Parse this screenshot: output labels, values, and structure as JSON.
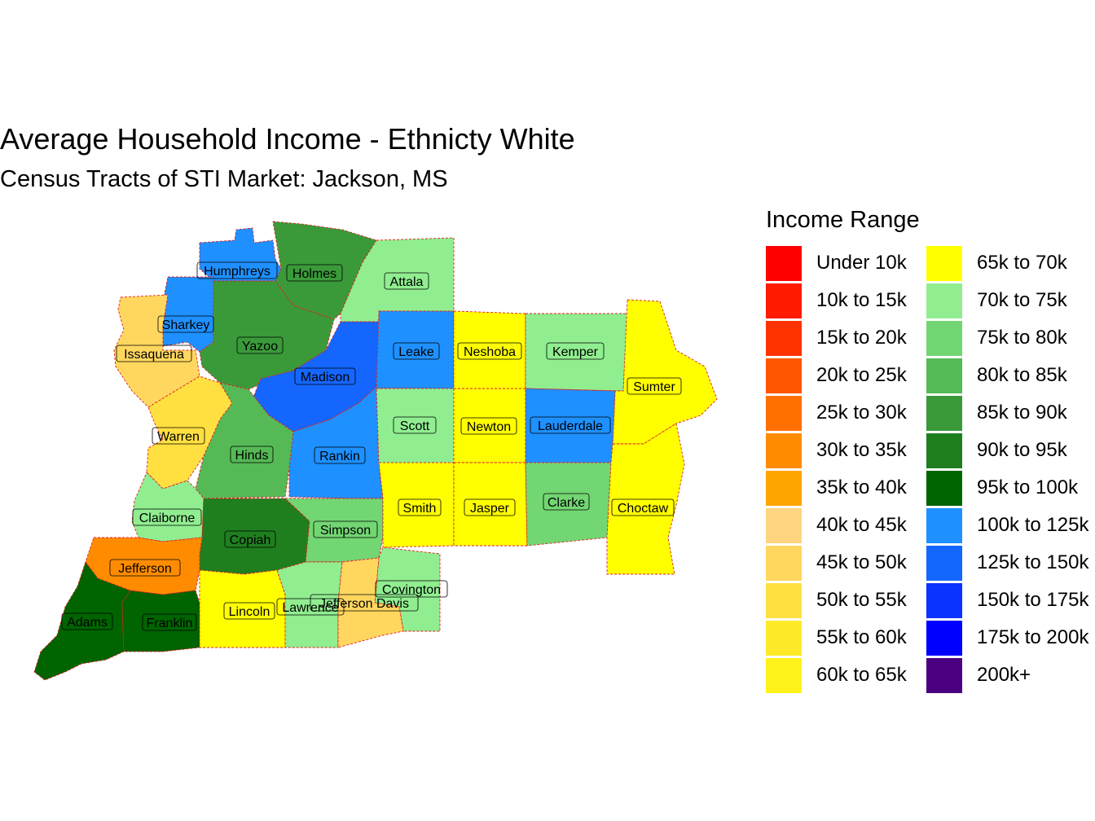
{
  "title": "Average Household Income - Ethnicty White",
  "subtitle": "Census Tracts of STI Market: Jackson, MS",
  "legend": {
    "title": "Income Range",
    "items": [
      {
        "label": "Under 10k",
        "color": "#FF0000"
      },
      {
        "label": "10k to 15k",
        "color": "#FF1A00"
      },
      {
        "label": "15k to 20k",
        "color": "#FF3300"
      },
      {
        "label": "20k to 25k",
        "color": "#FF5500"
      },
      {
        "label": "25k to 30k",
        "color": "#FF7000"
      },
      {
        "label": "30k to 35k",
        "color": "#FF8C00"
      },
      {
        "label": "35k to 40k",
        "color": "#FFA500"
      },
      {
        "label": "40k to 45k",
        "color": "#FFD580"
      },
      {
        "label": "45k to 50k",
        "color": "#FFD75F"
      },
      {
        "label": "50k to 55k",
        "color": "#FFE040"
      },
      {
        "label": "55k to 60k",
        "color": "#FFEA2A"
      },
      {
        "label": "60k to 65k",
        "color": "#FFF21A"
      },
      {
        "label": "65k to 70k",
        "color": "#FFFF00"
      },
      {
        "label": "70k to 75k",
        "color": "#90EE90"
      },
      {
        "label": "75k to 80k",
        "color": "#72D672"
      },
      {
        "label": "80k to 85k",
        "color": "#55B955"
      },
      {
        "label": "85k to 90k",
        "color": "#3A9A3A"
      },
      {
        "label": "90k to 95k",
        "color": "#1F7F1F"
      },
      {
        "label": "95k to 100k",
        "color": "#006400"
      },
      {
        "label": "100k to 125k",
        "color": "#1E90FF"
      },
      {
        "label": "125k to 150k",
        "color": "#1466FF"
      },
      {
        "label": "150k to 175k",
        "color": "#0A33FF"
      },
      {
        "label": "175k to 200k",
        "color": "#0000FF"
      },
      {
        "label": "200k+",
        "color": "#4B0082"
      }
    ]
  },
  "counties": [
    {
      "name": "Humphreys",
      "color": "#1E90FF"
    },
    {
      "name": "Holmes",
      "color": "#3A9A3A"
    },
    {
      "name": "Attala",
      "color": "#90EE90"
    },
    {
      "name": "Sharkey",
      "color": "#1E90FF"
    },
    {
      "name": "Issaquena",
      "color": "#FFD75F"
    },
    {
      "name": "Yazoo",
      "color": "#3A9A3A"
    },
    {
      "name": "Madison",
      "color": "#1466FF"
    },
    {
      "name": "Leake",
      "color": "#1E90FF"
    },
    {
      "name": "Neshoba",
      "color": "#FFFF00"
    },
    {
      "name": "Kemper",
      "color": "#90EE90"
    },
    {
      "name": "Sumter",
      "color": "#FFFF00"
    },
    {
      "name": "Warren",
      "color": "#FFE040"
    },
    {
      "name": "Hinds",
      "color": "#55B955"
    },
    {
      "name": "Rankin",
      "color": "#1E90FF"
    },
    {
      "name": "Scott",
      "color": "#90EE90"
    },
    {
      "name": "Newton",
      "color": "#FFFF00"
    },
    {
      "name": "Lauderdale",
      "color": "#1E90FF"
    },
    {
      "name": "Claiborne",
      "color": "#90EE90"
    },
    {
      "name": "Copiah",
      "color": "#1F7F1F"
    },
    {
      "name": "Simpson",
      "color": "#72D672"
    },
    {
      "name": "Smith",
      "color": "#FFFF00"
    },
    {
      "name": "Jasper",
      "color": "#FFFF00"
    },
    {
      "name": "Clarke",
      "color": "#72D672"
    },
    {
      "name": "Choctaw",
      "color": "#FFFF00"
    },
    {
      "name": "Jefferson",
      "color": "#FF8C00"
    },
    {
      "name": "Covington",
      "color": "#90EE90"
    },
    {
      "name": "Adams",
      "color": "#006400"
    },
    {
      "name": "Franklin",
      "color": "#006400"
    },
    {
      "name": "Lincoln",
      "color": "#FFFF00"
    },
    {
      "name": "Lawrence",
      "color": "#90EE90"
    },
    {
      "name": "Jefferson Davis",
      "color": "#FFD75F"
    }
  ]
}
